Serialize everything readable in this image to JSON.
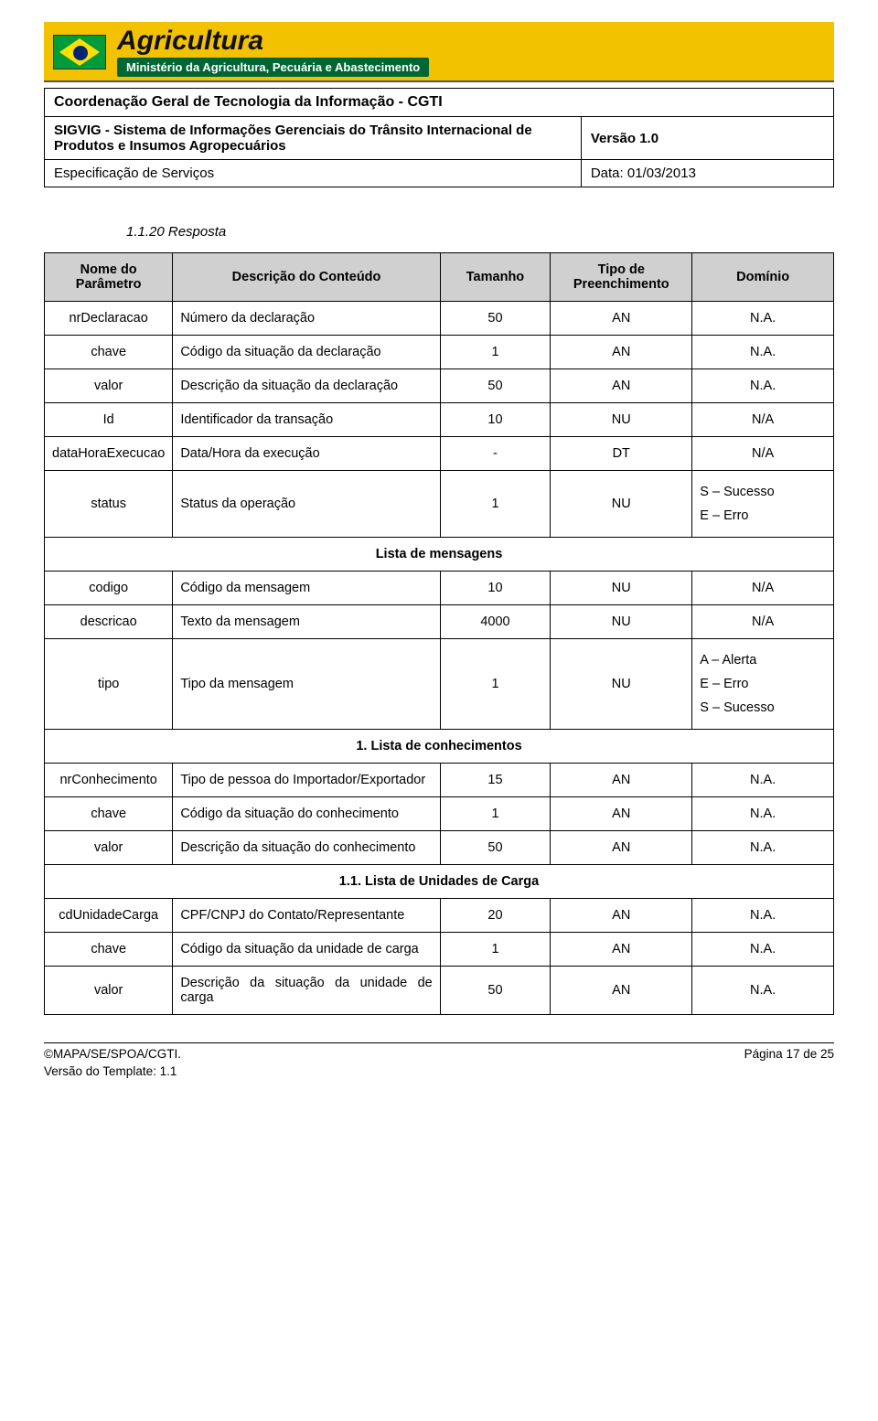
{
  "banner": {
    "title": "Agricultura",
    "subtitle": "Ministério da Agricultura, Pecuária e Abastecimento"
  },
  "header": {
    "cgti": "Coordenação Geral de Tecnologia da Informação - CGTI",
    "system": "SIGVIG - Sistema de Informações Gerenciais do Trânsito Internacional de Produtos e Insumos Agropecuários",
    "version_label": "Versão 1.0",
    "spec": "Especificação de Serviços",
    "date": "Data: 01/03/2013"
  },
  "section_heading": "1.1.20 Resposta",
  "columns": {
    "param": "Nome do Parâmetro",
    "desc": "Descrição do Conteúdo",
    "size": "Tamanho",
    "fill": "Tipo de Preenchimento",
    "dom": "Domínio"
  },
  "rows": [
    {
      "p": "nrDeclaracao",
      "d": "Número da declaração",
      "s": "50",
      "f": "AN",
      "dom": "N.A.",
      "domCenter": true
    },
    {
      "p": "chave",
      "d": "Código da situação da declaração",
      "s": "1",
      "f": "AN",
      "dom": "N.A.",
      "domCenter": true
    },
    {
      "p": "valor",
      "d": "Descrição da situação da declaração",
      "s": "50",
      "f": "AN",
      "dom": "N.A.",
      "domCenter": true
    },
    {
      "p": "Id",
      "d": "Identificador da transação",
      "s": "10",
      "f": "NU",
      "dom": "N/A",
      "domCenter": true
    },
    {
      "p": "dataHoraExecucao",
      "d": "Data/Hora da execução",
      "s": "-",
      "f": "DT",
      "dom": "N/A",
      "domCenter": true
    },
    {
      "p": "status",
      "d": "Status da operação",
      "s": "1",
      "f": "NU",
      "dom": "S – Sucesso\nE – Erro",
      "domCenter": false
    }
  ],
  "section1": "Lista de mensagens",
  "rows2": [
    {
      "p": "codigo",
      "d": "Código da mensagem",
      "s": "10",
      "f": "NU",
      "dom": "N/A",
      "domCenter": true
    },
    {
      "p": "descricao",
      "d": "Texto da mensagem",
      "s": "4000",
      "f": "NU",
      "dom": "N/A",
      "domCenter": true
    },
    {
      "p": "tipo",
      "d": "Tipo da mensagem",
      "s": "1",
      "f": "NU",
      "dom": "A – Alerta\nE – Erro\nS – Sucesso",
      "domCenter": false
    }
  ],
  "section2": "1.   Lista de conhecimentos",
  "rows3": [
    {
      "p": "nrConhecimento",
      "d": "Tipo de pessoa do Importador/Exportador",
      "s": "15",
      "f": "AN",
      "dom": "N.A.",
      "domCenter": true
    },
    {
      "p": "chave",
      "d": "Código da situação do conhecimento",
      "s": "1",
      "f": "AN",
      "dom": "N.A.",
      "domCenter": true
    },
    {
      "p": "valor",
      "d": "Descrição da situação do conhecimento",
      "s": "50",
      "f": "AN",
      "dom": "N.A.",
      "domCenter": true
    }
  ],
  "section3": "1.1. Lista de Unidades de Carga",
  "rows4": [
    {
      "p": "cdUnidadeCarga",
      "d": "CPF/CNPJ do Contato/Representante",
      "s": "20",
      "f": "AN",
      "dom": "N.A.",
      "domCenter": true
    },
    {
      "p": "chave",
      "d": "Código da situação da unidade de carga",
      "s": "1",
      "f": "AN",
      "dom": "N.A.",
      "domCenter": true
    },
    {
      "p": "valor",
      "d": "Descrição da situação da unidade de carga",
      "s": "50",
      "f": "AN",
      "dom": "N.A.",
      "domCenter": true
    }
  ],
  "footer": {
    "left": "©MAPA/SE/SPOA/CGTI.",
    "right": "Página 17 de 25",
    "template": "Versão do Template: 1.1"
  }
}
